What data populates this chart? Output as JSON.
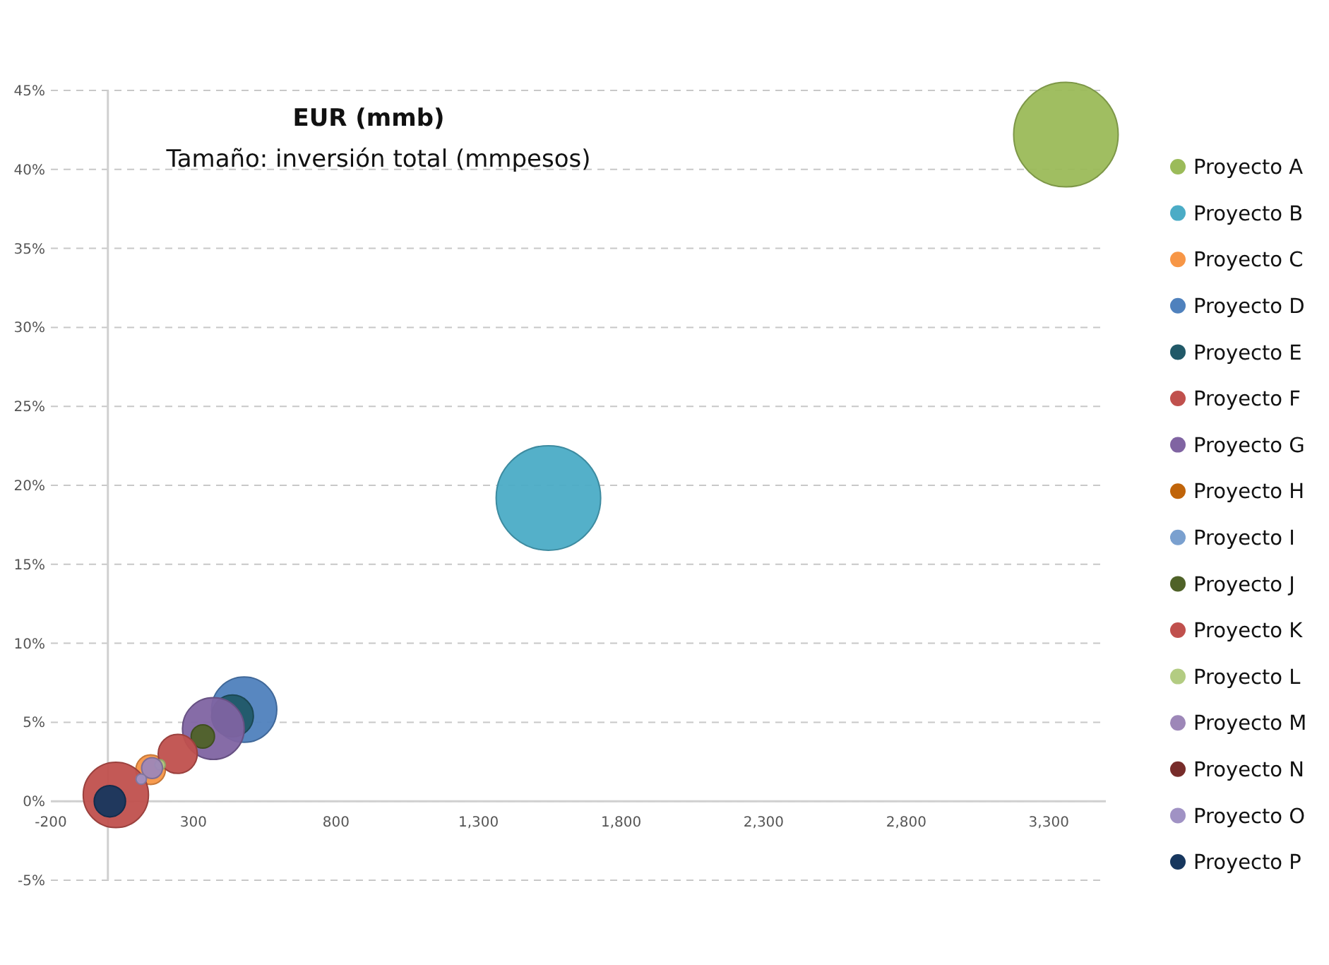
{
  "chart_data": {
    "type": "bubble",
    "title": "EUR (mmb)",
    "subtitle": "Tamaño: inversión total (mmpesos)",
    "xlim": [
      -200,
      3500
    ],
    "xticks": [
      {
        "value": -200,
        "label": "-200"
      },
      {
        "value": 300,
        "label": "300"
      },
      {
        "value": 800,
        "label": "800"
      },
      {
        "value": 1300,
        "label": "1,300"
      },
      {
        "value": 1800,
        "label": "1,800"
      },
      {
        "value": 2300,
        "label": "2,300"
      },
      {
        "value": 2800,
        "label": "2,800"
      },
      {
        "value": 3300,
        "label": "3,300"
      }
    ],
    "ylim": [
      -5,
      45
    ],
    "yticks": [
      {
        "value": -5,
        "label": "-5%"
      },
      {
        "value": 0,
        "label": "0%"
      },
      {
        "value": 5,
        "label": "5%"
      },
      {
        "value": 10,
        "label": "10%"
      },
      {
        "value": 15,
        "label": "15%"
      },
      {
        "value": 20,
        "label": "20%"
      },
      {
        "value": 25,
        "label": "25%"
      },
      {
        "value": 30,
        "label": "30%"
      },
      {
        "value": 35,
        "label": "35%"
      },
      {
        "value": 40,
        "label": "40%"
      },
      {
        "value": 45,
        "label": "45%"
      }
    ],
    "grid": "y",
    "legend": "right",
    "series": [
      {
        "name": "Proyecto A",
        "color": "#9bbb59",
        "x": [
          3360
        ],
        "values": [
          42.2
        ],
        "sizes": [
          1
        ]
      },
      {
        "name": "Proyecto B",
        "color": "#4bacc6",
        "x": [
          1545
        ],
        "values": [
          19.2
        ],
        "sizes": [
          1
        ]
      },
      {
        "name": "Proyecto C",
        "color": "#f79646",
        "x": [
          150
        ],
        "values": [
          2.0
        ],
        "sizes": [
          0.08
        ]
      },
      {
        "name": "Proyecto D",
        "color": "#4f81bd",
        "x": [
          478
        ],
        "values": [
          5.8
        ],
        "sizes": [
          0.39
        ]
      },
      {
        "name": "Proyecto E",
        "color": "#215968",
        "x": [
          437
        ],
        "values": [
          5.4
        ],
        "sizes": [
          0.16
        ]
      },
      {
        "name": "Proyecto F",
        "color": "#c0504d",
        "x": [
          28
        ],
        "values": [
          0.4
        ],
        "sizes": [
          0.39
        ]
      },
      {
        "name": "Proyecto G",
        "color": "#8064a2",
        "x": [
          370
        ],
        "values": [
          4.6
        ],
        "sizes": [
          0.35
        ]
      },
      {
        "name": "Proyecto H",
        "color": "#c0640a",
        "x": [
          null
        ],
        "values": [
          null
        ],
        "sizes": [
          null
        ]
      },
      {
        "name": "Proyecto I",
        "color": "#7aa0cf",
        "x": [
          null
        ],
        "values": [
          null
        ],
        "sizes": [
          null
        ]
      },
      {
        "name": "Proyecto J",
        "color": "#4f6228",
        "x": [
          333
        ],
        "values": [
          4.1
        ],
        "sizes": [
          0.05
        ]
      },
      {
        "name": "Proyecto K",
        "color": "#c0504d",
        "x": [
          245
        ],
        "values": [
          3.0
        ],
        "sizes": [
          0.14
        ]
      },
      {
        "name": "Proyecto L",
        "color": "#b3cc82",
        "x": [
          183
        ],
        "values": [
          2.3
        ],
        "sizes": [
          0.01
        ]
      },
      {
        "name": "Proyecto M",
        "color": "#9d87b8",
        "x": [
          155
        ],
        "values": [
          2.1
        ],
        "sizes": [
          0.04
        ]
      },
      {
        "name": "Proyecto N",
        "color": "#772c2a",
        "x": [
          null
        ],
        "values": [
          null
        ],
        "sizes": [
          null
        ]
      },
      {
        "name": "Proyecto O",
        "color": "#a092c4",
        "x": [
          117
        ],
        "values": [
          1.4
        ],
        "sizes": [
          0.01
        ]
      },
      {
        "name": "Proyecto P",
        "color": "#17375e",
        "x": [
          7
        ],
        "values": [
          0.0
        ],
        "sizes": [
          0.09
        ]
      }
    ]
  }
}
